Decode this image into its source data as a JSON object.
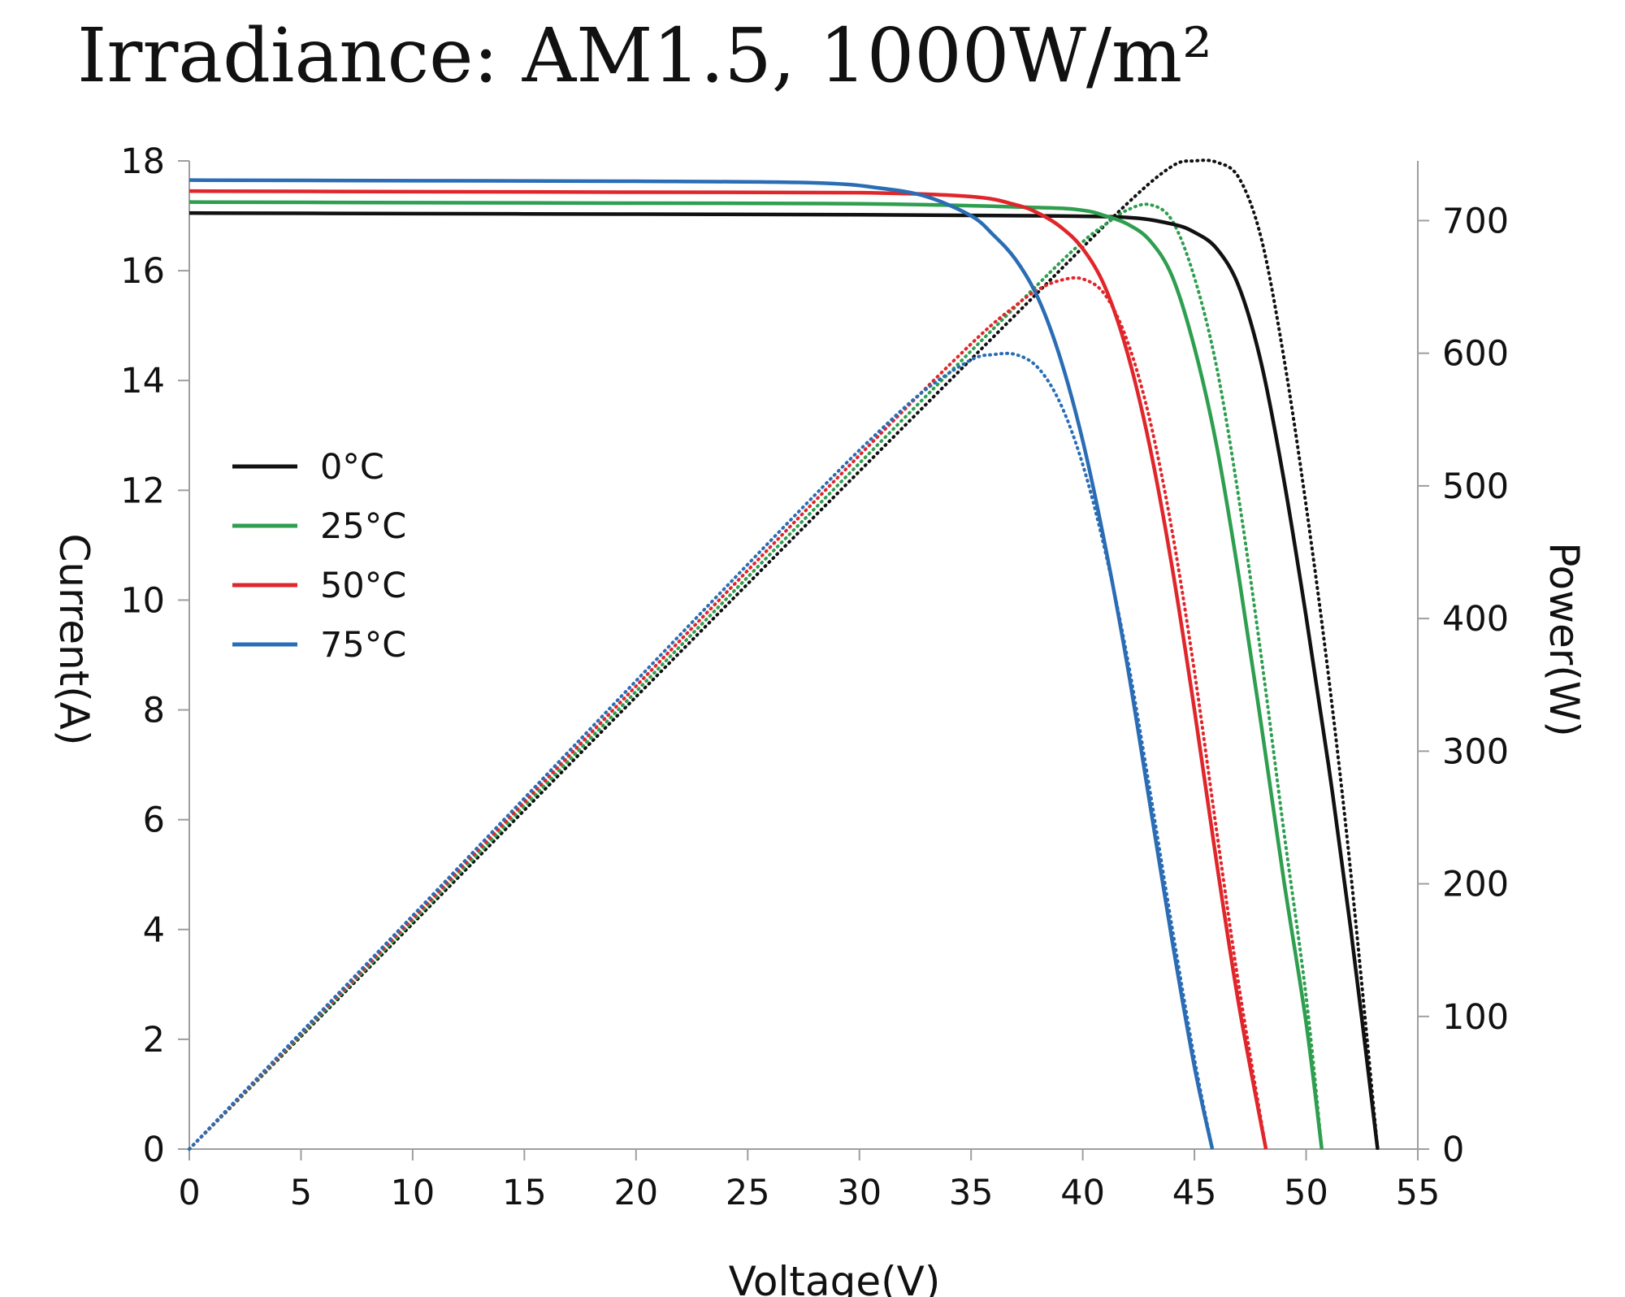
{
  "chart_data": {
    "type": "line",
    "title": "Irradiance: AM1.5, 1000W/m²",
    "xlabel": "Voltage(V)",
    "ylabel": "Current(A)",
    "y2label": "Power(W)",
    "xlim": [
      0,
      55
    ],
    "ylim": [
      0,
      18
    ],
    "y2lim": [
      0,
      745
    ],
    "x_ticks": [
      "0",
      "5",
      "10",
      "15",
      "20",
      "25",
      "30",
      "35",
      "40",
      "45",
      "50",
      "55"
    ],
    "y_ticks": [
      "0",
      "2",
      "4",
      "6",
      "8",
      "10",
      "12",
      "14",
      "16",
      "18"
    ],
    "y2_ticks": [
      "0",
      "100",
      "200",
      "300",
      "400",
      "500",
      "600",
      "700"
    ],
    "legend_position": "left-middle",
    "grid": false,
    "series": [
      {
        "name": "0°C",
        "color": "#111111",
        "isc": 17.05,
        "voc": 53.2,
        "current": [
          [
            0,
            17.05
          ],
          [
            10,
            17.04
          ],
          [
            20,
            17.03
          ],
          [
            30,
            17.02
          ],
          [
            38,
            17.0
          ],
          [
            42,
            16.97
          ],
          [
            44,
            16.85
          ],
          [
            45,
            16.7
          ],
          [
            46,
            16.4
          ],
          [
            47,
            15.7
          ],
          [
            48,
            14.3
          ],
          [
            49,
            12.2
          ],
          [
            50,
            9.7
          ],
          [
            51,
            7.0
          ],
          [
            52,
            4.0
          ],
          [
            53.2,
            0
          ]
        ],
        "power": [
          [
            0,
            0
          ],
          [
            10,
            170
          ],
          [
            20,
            341
          ],
          [
            30,
            511
          ],
          [
            38,
            646
          ],
          [
            42,
            713
          ],
          [
            44,
            741
          ],
          [
            45,
            745
          ],
          [
            46,
            744
          ],
          [
            47,
            732
          ],
          [
            48,
            686
          ],
          [
            49,
            597
          ],
          [
            50,
            485
          ],
          [
            51,
            357
          ],
          [
            52,
            208
          ],
          [
            53.2,
            0
          ]
        ]
      },
      {
        "name": "25°C",
        "color": "#2e9e4f",
        "isc": 17.25,
        "voc": 50.7,
        "current": [
          [
            0,
            17.25
          ],
          [
            10,
            17.24
          ],
          [
            20,
            17.23
          ],
          [
            30,
            17.22
          ],
          [
            38,
            17.15
          ],
          [
            40,
            17.1
          ],
          [
            41,
            17.0
          ],
          [
            42,
            16.85
          ],
          [
            43,
            16.55
          ],
          [
            44,
            15.9
          ],
          [
            45,
            14.6
          ],
          [
            46,
            12.8
          ],
          [
            47,
            10.4
          ],
          [
            48,
            7.7
          ],
          [
            49,
            4.9
          ],
          [
            50,
            2.3
          ],
          [
            50.7,
            0
          ]
        ],
        "power": [
          [
            0,
            0
          ],
          [
            10,
            172
          ],
          [
            20,
            345
          ],
          [
            30,
            517
          ],
          [
            38,
            652
          ],
          [
            40,
            684
          ],
          [
            41,
            697
          ],
          [
            42,
            708
          ],
          [
            43,
            712
          ],
          [
            44,
            700
          ],
          [
            45,
            657
          ],
          [
            46,
            589
          ],
          [
            47,
            489
          ],
          [
            48,
            370
          ],
          [
            49,
            240
          ],
          [
            50,
            115
          ],
          [
            50.7,
            0
          ]
        ]
      },
      {
        "name": "50°C",
        "color": "#e0262b",
        "isc": 17.45,
        "voc": 48.2,
        "current": [
          [
            0,
            17.45
          ],
          [
            10,
            17.44
          ],
          [
            20,
            17.43
          ],
          [
            30,
            17.42
          ],
          [
            35,
            17.35
          ],
          [
            37,
            17.2
          ],
          [
            38,
            17.05
          ],
          [
            39,
            16.8
          ],
          [
            40,
            16.4
          ],
          [
            41,
            15.7
          ],
          [
            42,
            14.5
          ],
          [
            43,
            12.8
          ],
          [
            44,
            10.6
          ],
          [
            45,
            8.0
          ],
          [
            46,
            5.2
          ],
          [
            47,
            2.6
          ],
          [
            48.2,
            0
          ]
        ],
        "power": [
          [
            0,
            0
          ],
          [
            10,
            174
          ],
          [
            20,
            349
          ],
          [
            30,
            523
          ],
          [
            35,
            607
          ],
          [
            37,
            636
          ],
          [
            38,
            648
          ],
          [
            39,
            655
          ],
          [
            40,
            656
          ],
          [
            41,
            644
          ],
          [
            42,
            609
          ],
          [
            43,
            550
          ],
          [
            44,
            466
          ],
          [
            45,
            360
          ],
          [
            46,
            239
          ],
          [
            47,
            122
          ],
          [
            48.2,
            0
          ]
        ]
      },
      {
        "name": "75°C",
        "color": "#2a6db5",
        "isc": 17.65,
        "voc": 45.8,
        "current": [
          [
            0,
            17.65
          ],
          [
            10,
            17.64
          ],
          [
            20,
            17.63
          ],
          [
            28,
            17.6
          ],
          [
            31,
            17.5
          ],
          [
            33,
            17.35
          ],
          [
            35,
            17.0
          ],
          [
            36,
            16.65
          ],
          [
            37,
            16.2
          ],
          [
            38,
            15.5
          ],
          [
            39,
            14.4
          ],
          [
            40,
            12.9
          ],
          [
            41,
            11.0
          ],
          [
            42,
            8.8
          ],
          [
            43,
            6.3
          ],
          [
            44,
            3.8
          ],
          [
            45,
            1.5
          ],
          [
            45.8,
            0
          ]
        ],
        "power": [
          [
            0,
            0
          ],
          [
            10,
            176
          ],
          [
            20,
            353
          ],
          [
            28,
            493
          ],
          [
            31,
            543
          ],
          [
            33,
            573
          ],
          [
            35,
            595
          ],
          [
            36,
            599
          ],
          [
            37,
            599
          ],
          [
            38,
            589
          ],
          [
            39,
            562
          ],
          [
            40,
            516
          ],
          [
            41,
            451
          ],
          [
            42,
            370
          ],
          [
            43,
            271
          ],
          [
            44,
            167
          ],
          [
            45,
            68
          ],
          [
            45.8,
            0
          ]
        ]
      }
    ]
  }
}
